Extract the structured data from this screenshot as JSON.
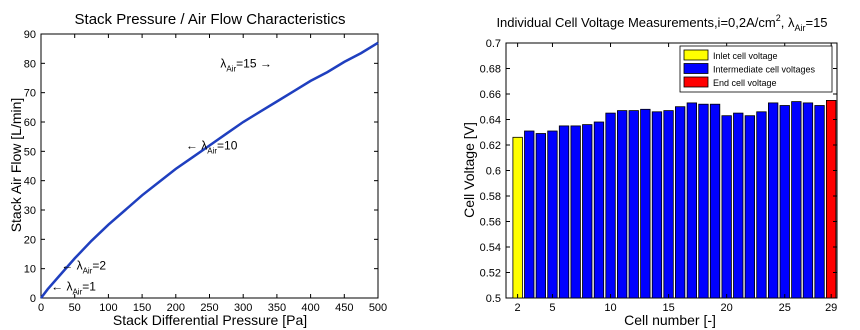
{
  "chart_data": [
    {
      "type": "line",
      "title": "Stack Pressure / Air Flow Characteristics",
      "xlabel": "Stack Differential Pressure  [Pa]",
      "ylabel": "Stack Air Flow [L/min]",
      "xlim": [
        0,
        500
      ],
      "ylim": [
        0,
        90
      ],
      "xticks": [
        "0",
        "50",
        "100",
        "150",
        "200",
        "250",
        "300",
        "350",
        "400",
        "450",
        "500"
      ],
      "yticks": [
        "0",
        "10",
        "20",
        "30",
        "40",
        "50",
        "60",
        "70",
        "80",
        "90"
      ],
      "grid": false,
      "line_color": "#1f3fbf",
      "series": [
        {
          "x": [
            0,
            10,
            25,
            50,
            75,
            100,
            125,
            150,
            175,
            200,
            225,
            250,
            275,
            300,
            325,
            350,
            375,
            400,
            425,
            450,
            475,
            500
          ],
          "y": [
            0,
            3,
            7,
            13.5,
            19.5,
            25,
            30,
            35,
            39.5,
            44,
            48,
            52,
            56,
            60,
            63.5,
            67,
            70.5,
            74,
            77,
            80.5,
            83.5,
            87
          ]
        }
      ],
      "annotations": [
        {
          "arrow": "←",
          "base": "λ",
          "sub": "Air",
          "value": "=1",
          "x": 15,
          "y": 4
        },
        {
          "arrow": "←",
          "base": "λ",
          "sub": "Air",
          "value": "=2",
          "x": 30,
          "y": 11
        },
        {
          "arrow": "←",
          "base": "λ",
          "sub": "Air",
          "value": "=10",
          "x": 215,
          "y": 52
        },
        {
          "arrow": "→",
          "base": "λ",
          "sub": "Air",
          "value": "=15",
          "x": 390,
          "y": 80
        }
      ]
    },
    {
      "type": "bar",
      "title_prefix": "Individual Cell Voltage Measurements,i=0,2A/cm",
      "title_sup": "2",
      "title_mid": ", λ",
      "title_sub": "Air",
      "title_suffix": "=15",
      "xlabel": "Cell number [-]",
      "ylabel": "Cell Voltage [V]",
      "xlim": [
        1,
        29.5
      ],
      "ylim": [
        0.5,
        0.7
      ],
      "xticks": [
        "2",
        "5",
        "10",
        "15",
        "20",
        "25",
        "29"
      ],
      "xtick_values": [
        2,
        5,
        10,
        15,
        20,
        25,
        29
      ],
      "yticks": [
        "0.5",
        "0.52",
        "0.54",
        "0.56",
        "0.58",
        "0.6",
        "0.62",
        "0.64",
        "0.66",
        "0.68",
        "0.7"
      ],
      "grid": false,
      "legend_position": "top-right",
      "legend": [
        {
          "label": "Inlet cell voltage",
          "color": "#ffff00"
        },
        {
          "label": "Intermediate cell voltages",
          "color": "#0000ff"
        },
        {
          "label": "End cell voltage",
          "color": "#ff0000"
        }
      ],
      "colors": {
        "inlet": "#ffff00",
        "intermediate": "#0000ff",
        "end": "#ff0000"
      },
      "cells": [
        2,
        3,
        4,
        5,
        6,
        7,
        8,
        9,
        10,
        11,
        12,
        13,
        14,
        15,
        16,
        17,
        18,
        19,
        20,
        21,
        22,
        23,
        24,
        25,
        26,
        27,
        28,
        29
      ],
      "values": [
        0.626,
        0.631,
        0.629,
        0.631,
        0.635,
        0.635,
        0.636,
        0.638,
        0.645,
        0.647,
        0.647,
        0.648,
        0.646,
        0.647,
        0.65,
        0.653,
        0.652,
        0.652,
        0.643,
        0.645,
        0.643,
        0.646,
        0.653,
        0.651,
        0.654,
        0.653,
        0.651,
        0.655
      ],
      "roles": [
        "inlet",
        "intermediate",
        "intermediate",
        "intermediate",
        "intermediate",
        "intermediate",
        "intermediate",
        "intermediate",
        "intermediate",
        "intermediate",
        "intermediate",
        "intermediate",
        "intermediate",
        "intermediate",
        "intermediate",
        "intermediate",
        "intermediate",
        "intermediate",
        "intermediate",
        "intermediate",
        "intermediate",
        "intermediate",
        "intermediate",
        "intermediate",
        "intermediate",
        "intermediate",
        "intermediate",
        "end"
      ]
    }
  ]
}
